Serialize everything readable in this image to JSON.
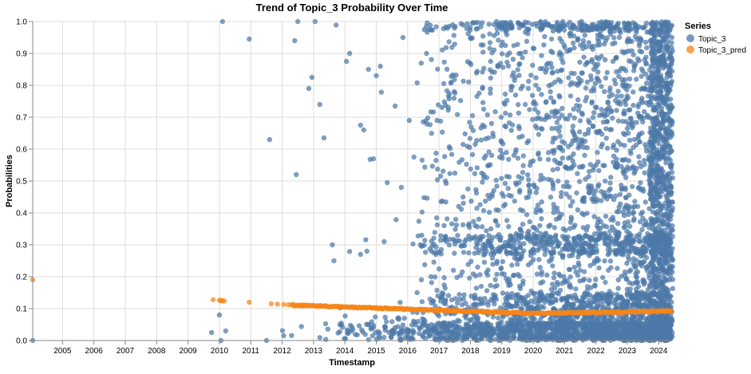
{
  "chart_data": {
    "type": "scatter",
    "title": "Trend of Topic_3 Probability Over Time",
    "xlabel": "Timestamp",
    "ylabel": "Probabilities",
    "xlim": [
      2004.05,
      2024.45
    ],
    "ylim": [
      0,
      1.0
    ],
    "x_ticks": [
      "2005",
      "2006",
      "2007",
      "2008",
      "2009",
      "2010",
      "2011",
      "2012",
      "2013",
      "2014",
      "2015",
      "2016",
      "2017",
      "2018",
      "2019",
      "2020",
      "2021",
      "2022",
      "2023",
      "2024"
    ],
    "y_ticks": [
      "0.0",
      "0.1",
      "0.2",
      "0.3",
      "0.4",
      "0.5",
      "0.6",
      "0.7",
      "0.8",
      "0.9",
      "1.0"
    ],
    "grid": true,
    "legend": {
      "title": "Series",
      "position": "right"
    },
    "series": [
      {
        "name": "Topic_3",
        "color": "#4c78a8",
        "points": [
          [
            2004.05,
            0.0
          ],
          [
            2009.75,
            0.025
          ],
          [
            2010.0,
            0.08
          ],
          [
            2010.05,
            0.0
          ],
          [
            2010.1,
            1.0
          ],
          [
            2010.2,
            0.03
          ],
          [
            2010.95,
            0.945
          ],
          [
            2011.6,
            0.63
          ],
          [
            2011.5,
            0.0
          ],
          [
            2012.4,
            0.94
          ],
          [
            2012.45,
            0.52
          ],
          [
            2012.5,
            1.0
          ],
          [
            2012.85,
            0.79
          ],
          [
            2012.95,
            0.825
          ],
          [
            2013.05,
            1.0
          ],
          [
            2013.2,
            0.74
          ],
          [
            2013.6,
            0.3
          ],
          [
            2013.65,
            0.25
          ],
          [
            2014.05,
            0.875
          ],
          [
            2014.15,
            0.9
          ],
          [
            2014.5,
            0.675
          ],
          [
            2014.6,
            0.66
          ],
          [
            2014.5,
            0.27
          ],
          [
            2014.7,
            0.28
          ],
          [
            2014.75,
            0.85
          ],
          [
            2015.0,
            0.83
          ],
          [
            2015.25,
            0.31
          ],
          [
            2015.35,
            0.495
          ],
          [
            2015.6,
            0.735
          ],
          [
            2015.8,
            0.48
          ],
          [
            2015.85,
            0.95
          ],
          [
            2016.05,
            0.69
          ],
          [
            2016.2,
            0.575
          ],
          [
            2016.3,
            0.15
          ],
          [
            2016.45,
            0.33
          ],
          [
            2016.6,
            0.9
          ]
        ],
        "density_profile": {
          "description": "dense cloud of points from 2016 to 2024.4, densest near 0 and increasing toward 2024",
          "x_range": [
            2012.0,
            2024.4
          ],
          "y_range": [
            0.0,
            1.0
          ]
        }
      },
      {
        "name": "Topic_3_pred",
        "color": "#f58518",
        "points": [
          [
            2004.05,
            0.19
          ],
          [
            2009.8,
            0.128
          ],
          [
            2010.0,
            0.126
          ],
          [
            2010.05,
            0.125
          ],
          [
            2010.1,
            0.125
          ],
          [
            2010.15,
            0.124
          ],
          [
            2010.95,
            0.12
          ],
          [
            2011.65,
            0.115
          ],
          [
            2011.85,
            0.114
          ],
          [
            2012.05,
            0.113
          ],
          [
            2012.2,
            0.112
          ]
        ],
        "trend_line": {
          "x_range": [
            2012.3,
            2024.4
          ],
          "y_start": 0.111,
          "y_end": 0.092,
          "y_min": 0.085,
          "y_min_at": 2020.0
        }
      }
    ]
  }
}
